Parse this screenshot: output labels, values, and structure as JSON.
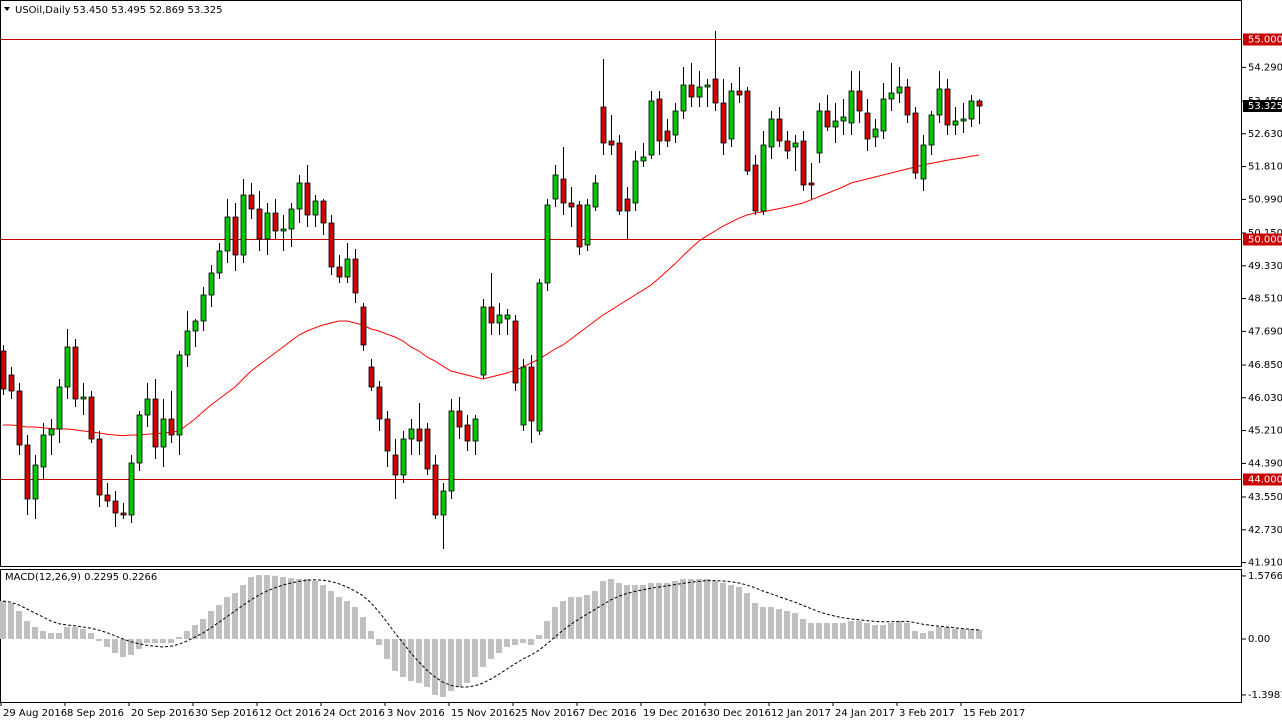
{
  "chart_data": [
    {
      "type": "candlestick",
      "title": "USOil,Daily",
      "quote": "53.450 53.495 52.869 53.325",
      "categories": [
        "29 Aug 2016",
        null,
        null,
        null,
        null,
        null,
        null,
        null,
        "8 Sep 2016",
        null,
        null,
        null,
        null,
        null,
        null,
        null,
        "20 Sep 2016",
        null,
        null,
        null,
        null,
        null,
        null,
        null,
        "30 Sep 2016",
        null,
        null,
        null,
        null,
        null,
        null,
        null,
        "12 Oct 2016",
        null,
        null,
        null,
        null,
        null,
        null,
        null,
        "24 Oct 2016",
        null,
        null,
        null,
        null,
        null,
        null,
        null,
        "3 Nov 2016",
        null,
        null,
        null,
        null,
        null,
        null,
        null,
        "15 Nov 2016",
        null,
        null,
        null,
        null,
        null,
        null,
        null,
        "25 Nov 2016",
        null,
        null,
        null,
        null,
        null,
        null,
        null,
        "7 Dec 2016",
        null,
        null,
        null,
        null,
        null,
        null,
        null,
        "19 Dec 2016",
        null,
        null,
        null,
        null,
        null,
        null,
        null,
        "30 Dec 2016",
        null,
        null,
        null,
        null,
        null,
        null,
        null,
        "12 Jan 2017",
        null,
        null,
        null,
        null,
        null,
        null,
        null,
        "24 Jan 2017",
        null,
        null,
        null,
        null,
        null,
        null,
        null,
        "3 Feb 2017",
        null,
        null,
        null,
        null,
        null,
        null,
        null,
        "15 Feb 2017",
        null,
        null
      ],
      "open": [
        47.2,
        46.6,
        46.2,
        44.85,
        43.5,
        44.3,
        45.1,
        45.25,
        46.3,
        47.3,
        46.0,
        46.05,
        45.0,
        43.6,
        43.45,
        43.15,
        43.1,
        44.4,
        45.6,
        46.0,
        44.8,
        45.5,
        45.1,
        47.1,
        47.7,
        47.95,
        48.6,
        49.15,
        49.7,
        50.55,
        49.6,
        51.1,
        50.75,
        50.0,
        50.65,
        50.2,
        50.25,
        50.75,
        51.4,
        50.6,
        50.95,
        50.4,
        49.3,
        49.05,
        49.5,
        48.3,
        46.8,
        46.3,
        45.5,
        44.6,
        44.1,
        45.0,
        45.25,
        45.25,
        44.35,
        43.1,
        43.7,
        45.7,
        45.35,
        44.95,
        46.6,
        48.3,
        47.9,
        48.0,
        47.95,
        45.35,
        46.8,
        45.2,
        48.9,
        51.0,
        51.5,
        50.9,
        50.85,
        49.85,
        50.8,
        53.3,
        52.45,
        52.4,
        51.0,
        50.9,
        51.95,
        52.1,
        53.5,
        52.7,
        52.6,
        53.2,
        53.85,
        53.55,
        53.8,
        54.0,
        53.4,
        52.5,
        53.7,
        53.7,
        51.85,
        50.7,
        52.3,
        53.0,
        52.45,
        52.3,
        52.45,
        51.4,
        52.15,
        53.2,
        52.8,
        52.95,
        52.9,
        53.7,
        53.15,
        52.55,
        52.7,
        53.5,
        53.65,
        53.8,
        53.15,
        51.5,
        52.35,
        53.1,
        53.75,
        52.85,
        52.95,
        53.0,
        53.45
      ],
      "high": [
        47.35,
        46.8,
        46.4,
        45.1,
        44.6,
        45.4,
        45.5,
        46.5,
        47.75,
        47.5,
        46.4,
        46.2,
        45.2,
        43.9,
        43.7,
        43.4,
        44.6,
        45.7,
        46.4,
        46.5,
        46.0,
        46.2,
        47.2,
        48.2,
        48.0,
        48.8,
        49.35,
        49.9,
        51.0,
        50.9,
        51.5,
        51.4,
        51.2,
        50.9,
        51.0,
        50.6,
        50.9,
        51.6,
        51.85,
        51.1,
        51.0,
        50.6,
        49.6,
        49.9,
        49.75,
        48.4,
        47.0,
        46.45,
        45.7,
        45.0,
        45.2,
        45.5,
        45.9,
        45.4,
        44.6,
        43.9,
        46.0,
        46.05,
        45.6,
        45.6,
        48.5,
        49.15,
        48.4,
        48.25,
        48.1,
        47.0,
        47.1,
        49.0,
        51.0,
        51.85,
        52.3,
        51.3,
        50.95,
        51.0,
        51.6,
        54.5,
        53.1,
        52.6,
        51.3,
        52.2,
        52.4,
        53.7,
        53.7,
        53.0,
        53.4,
        54.3,
        54.4,
        54.2,
        54.0,
        55.2,
        54.0,
        53.9,
        54.3,
        53.8,
        52.1,
        52.7,
        53.2,
        53.3,
        52.7,
        52.6,
        52.7,
        51.9,
        53.4,
        53.6,
        53.4,
        53.5,
        54.2,
        54.2,
        53.5,
        53.0,
        53.9,
        54.4,
        54.3,
        54.0,
        53.3,
        52.6,
        53.2,
        54.2,
        54.0,
        53.3,
        53.4,
        53.6,
        53.495
      ],
      "low": [
        46.1,
        46.0,
        44.6,
        43.1,
        43.0,
        44.0,
        44.6,
        44.9,
        46.0,
        45.8,
        45.6,
        44.9,
        43.3,
        43.3,
        42.8,
        43.0,
        42.9,
        44.2,
        45.3,
        44.5,
        44.3,
        44.9,
        44.6,
        46.8,
        47.3,
        47.7,
        48.3,
        49.0,
        49.4,
        49.2,
        49.4,
        50.5,
        49.7,
        49.6,
        50.0,
        49.7,
        49.8,
        50.4,
        50.3,
        50.3,
        50.1,
        49.1,
        48.9,
        48.9,
        48.4,
        47.2,
        46.2,
        45.2,
        44.3,
        43.5,
        43.9,
        44.6,
        44.6,
        44.1,
        43.0,
        42.25,
        43.5,
        45.0,
        44.7,
        44.6,
        46.5,
        47.6,
        47.6,
        47.6,
        46.2,
        45.2,
        44.9,
        45.1,
        48.7,
        50.8,
        50.6,
        50.3,
        49.6,
        49.7,
        50.7,
        52.1,
        52.1,
        50.6,
        50.0,
        50.7,
        51.8,
        52.0,
        52.1,
        52.3,
        52.4,
        53.0,
        53.3,
        53.3,
        53.3,
        53.2,
        52.1,
        52.3,
        53.4,
        51.6,
        50.6,
        50.6,
        52.0,
        52.3,
        52.0,
        51.7,
        51.2,
        51.0,
        51.9,
        52.7,
        52.4,
        52.6,
        52.6,
        52.9,
        52.2,
        52.3,
        52.5,
        53.2,
        53.4,
        52.9,
        51.5,
        51.2,
        52.1,
        52.9,
        52.6,
        52.6,
        52.65,
        52.8,
        52.869
      ],
      "close": [
        46.25,
        46.2,
        44.85,
        43.5,
        44.35,
        45.1,
        45.25,
        46.3,
        47.3,
        46.0,
        46.05,
        45.0,
        43.6,
        43.45,
        43.15,
        43.1,
        44.4,
        45.6,
        46.0,
        44.8,
        45.5,
        45.1,
        47.1,
        47.7,
        47.95,
        48.6,
        49.15,
        49.7,
        50.55,
        49.6,
        51.1,
        50.75,
        50.0,
        50.65,
        50.2,
        50.25,
        50.75,
        51.4,
        50.6,
        50.95,
        50.4,
        49.3,
        49.05,
        49.5,
        48.65,
        47.35,
        46.3,
        45.5,
        44.7,
        44.1,
        45.0,
        45.25,
        44.95,
        44.25,
        43.1,
        43.7,
        45.7,
        45.3,
        44.95,
        45.5,
        48.3,
        47.9,
        48.1,
        48.1,
        46.4,
        46.8,
        45.45,
        48.9,
        50.85,
        51.6,
        50.9,
        50.8,
        49.8,
        50.85,
        51.4,
        52.4,
        52.35,
        50.7,
        50.7,
        51.95,
        52.05,
        53.45,
        52.45,
        52.45,
        53.2,
        53.85,
        53.55,
        53.8,
        53.85,
        53.4,
        52.4,
        53.7,
        53.6,
        51.7,
        50.7,
        52.35,
        53.0,
        52.45,
        52.2,
        52.4,
        51.35,
        51.35,
        53.2,
        52.8,
        52.95,
        53.05,
        53.7,
        53.2,
        52.5,
        52.75,
        53.5,
        53.65,
        53.8,
        53.1,
        51.65,
        52.35,
        53.1,
        53.75,
        52.85,
        52.95,
        53.0,
        53.45,
        53.325
      ],
      "up_color": "#00c800",
      "down_color": "#d20000",
      "wick_color": "#000000",
      "moving_average": {
        "color": "#ff0000",
        "values": [
          45.35,
          45.35,
          45.33,
          45.3,
          45.3,
          45.28,
          45.26,
          45.25,
          45.25,
          45.23,
          45.2,
          45.18,
          45.15,
          45.12,
          45.1,
          45.08,
          45.1,
          45.1,
          45.12,
          45.13,
          45.15,
          45.17,
          45.2,
          45.35,
          45.5,
          45.68,
          45.85,
          46.0,
          46.15,
          46.3,
          46.5,
          46.7,
          46.85,
          47.0,
          47.15,
          47.3,
          47.45,
          47.6,
          47.7,
          47.78,
          47.85,
          47.9,
          47.95,
          47.95,
          47.9,
          47.85,
          47.75,
          47.7,
          47.62,
          47.55,
          47.45,
          47.3,
          47.2,
          47.05,
          46.95,
          46.82,
          46.7,
          46.65,
          46.6,
          46.55,
          46.5,
          46.55,
          46.6,
          46.65,
          46.72,
          46.8,
          46.9,
          47.0,
          47.12,
          47.25,
          47.35,
          47.5,
          47.65,
          47.8,
          47.95,
          48.1,
          48.22,
          48.35,
          48.47,
          48.6,
          48.72,
          48.85,
          49.02,
          49.2,
          49.38,
          49.58,
          49.77,
          49.95,
          50.08,
          50.2,
          50.32,
          50.42,
          50.52,
          50.6,
          50.65,
          50.68,
          50.72,
          50.76,
          50.8,
          50.85,
          50.9,
          50.98,
          51.06,
          51.14,
          51.22,
          51.3,
          51.4,
          51.45,
          51.5,
          51.55,
          51.6,
          51.65,
          51.7,
          51.75,
          51.8,
          51.85,
          51.89,
          51.93,
          51.97,
          52.0,
          52.03,
          52.07,
          52.1
        ]
      },
      "hlines": [
        {
          "value": 55,
          "label": "55.000"
        },
        {
          "value": 50,
          "label": "50.000"
        },
        {
          "value": 44,
          "label": "44.000"
        }
      ],
      "hline_color": "#c80000",
      "last_price": {
        "value": 53.325,
        "label": "53.325"
      },
      "ylim": [
        41.825,
        55.975
      ],
      "yticks": [
        {
          "value": 54.29,
          "label": "54.290"
        },
        {
          "value": 53.45,
          "label": "53.450"
        },
        {
          "value": 52.63,
          "label": "52.630"
        },
        {
          "value": 51.81,
          "label": "51.810"
        },
        {
          "value": 50.99,
          "label": "50.990"
        },
        {
          "value": 50.15,
          "label": "50.150"
        },
        {
          "value": 49.33,
          "label": "49.330"
        },
        {
          "value": 48.51,
          "label": "48.510"
        },
        {
          "value": 47.69,
          "label": "47.690"
        },
        {
          "value": 46.85,
          "label": "46.850"
        },
        {
          "value": 46.03,
          "label": "46.030"
        },
        {
          "value": 45.21,
          "label": "45.210"
        },
        {
          "value": 44.39,
          "label": "44.390"
        },
        {
          "value": 43.55,
          "label": "43.550"
        },
        {
          "value": 42.73,
          "label": "42.730"
        },
        {
          "value": 41.91,
          "label": "41.910"
        }
      ]
    },
    {
      "type": "macd",
      "title": "MACD(12,26,9) 0.2295 0.2266",
      "histogram": [
        0.95,
        0.9,
        0.7,
        0.45,
        0.3,
        0.2,
        0.15,
        0.15,
        0.3,
        0.3,
        0.25,
        0.15,
        -0.05,
        -0.2,
        -0.35,
        -0.45,
        -0.4,
        -0.25,
        -0.1,
        -0.1,
        -0.1,
        -0.1,
        0.05,
        0.2,
        0.35,
        0.5,
        0.7,
        0.85,
        1.05,
        1.15,
        1.35,
        1.55,
        1.6,
        1.6,
        1.58,
        1.55,
        1.52,
        1.5,
        1.5,
        1.45,
        1.35,
        1.2,
        1.05,
        0.95,
        0.8,
        0.55,
        0.2,
        -0.15,
        -0.5,
        -0.8,
        -0.95,
        -1.05,
        -1.1,
        -1.2,
        -1.4,
        -1.45,
        -1.3,
        -1.2,
        -1.1,
        -0.95,
        -0.7,
        -0.5,
        -0.35,
        -0.2,
        -0.15,
        -0.1,
        -0.15,
        0.1,
        0.45,
        0.8,
        0.95,
        1.05,
        1.05,
        1.1,
        1.2,
        1.45,
        1.5,
        1.4,
        1.35,
        1.35,
        1.35,
        1.4,
        1.4,
        1.4,
        1.45,
        1.5,
        1.5,
        1.5,
        1.5,
        1.45,
        1.4,
        1.35,
        1.3,
        1.15,
        0.9,
        0.8,
        0.8,
        0.75,
        0.7,
        0.65,
        0.5,
        0.4,
        0.4,
        0.4,
        0.4,
        0.4,
        0.45,
        0.45,
        0.4,
        0.35,
        0.35,
        0.4,
        0.45,
        0.4,
        0.2,
        0.15,
        0.2,
        0.3,
        0.3,
        0.25,
        0.25,
        0.25,
        0.2295
      ],
      "signal": [
        0.95,
        0.92,
        0.85,
        0.75,
        0.65,
        0.55,
        0.45,
        0.38,
        0.35,
        0.33,
        0.3,
        0.27,
        0.22,
        0.16,
        0.08,
        0.0,
        -0.07,
        -0.12,
        -0.16,
        -0.18,
        -0.2,
        -0.18,
        -0.13,
        -0.05,
        0.05,
        0.15,
        0.28,
        0.42,
        0.56,
        0.7,
        0.84,
        0.98,
        1.1,
        1.2,
        1.28,
        1.35,
        1.4,
        1.44,
        1.47,
        1.48,
        1.47,
        1.44,
        1.38,
        1.3,
        1.2,
        1.08,
        0.9,
        0.68,
        0.42,
        0.15,
        -0.1,
        -0.35,
        -0.58,
        -0.78,
        -0.95,
        -1.08,
        -1.16,
        -1.2,
        -1.2,
        -1.17,
        -1.1,
        -1.0,
        -0.88,
        -0.75,
        -0.62,
        -0.5,
        -0.4,
        -0.28,
        -0.12,
        0.05,
        0.22,
        0.37,
        0.5,
        0.62,
        0.74,
        0.86,
        0.98,
        1.07,
        1.14,
        1.19,
        1.23,
        1.27,
        1.3,
        1.33,
        1.36,
        1.39,
        1.42,
        1.44,
        1.46,
        1.46,
        1.45,
        1.43,
        1.4,
        1.35,
        1.28,
        1.2,
        1.13,
        1.06,
        0.99,
        0.92,
        0.84,
        0.76,
        0.68,
        0.62,
        0.57,
        0.53,
        0.5,
        0.48,
        0.46,
        0.44,
        0.43,
        0.43,
        0.44,
        0.44,
        0.41,
        0.37,
        0.34,
        0.32,
        0.3,
        0.28,
        0.26,
        0.24,
        0.2266
      ],
      "histogram_color": "#c0c0c0",
      "signal_color": "#000000",
      "ylim": [
        -1.575,
        1.725
      ],
      "yticks": [
        1.5766,
        {
          "value": 0,
          "label": "0.00"
        },
        -1.3981
      ]
    }
  ]
}
